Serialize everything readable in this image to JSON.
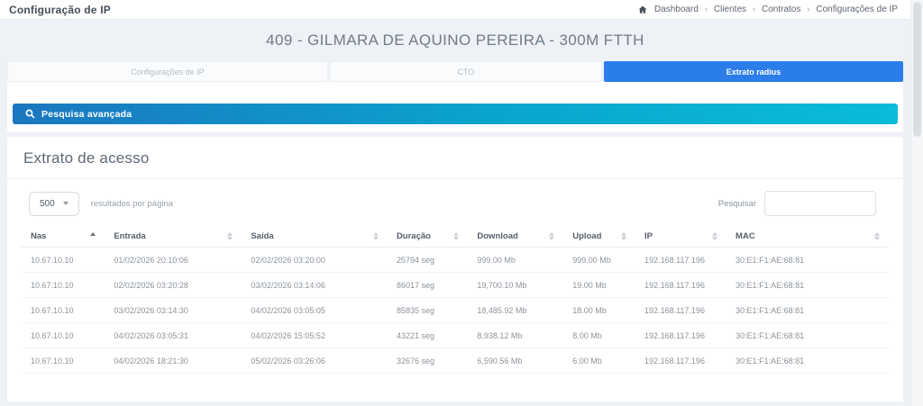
{
  "topbar": {
    "title": "Configuração de IP",
    "breadcrumb": [
      "Dashboard",
      "Clientes",
      "Contratos",
      "Configurações de IP"
    ]
  },
  "header": {
    "title": "409 - GILMARA DE AQUINO PEREIRA - 300M FTTH"
  },
  "tabs": [
    {
      "label": "Configurações de IP",
      "active": false
    },
    {
      "label": "CTO",
      "active": false
    },
    {
      "label": "Extrato radius",
      "active": true
    }
  ],
  "advanced_search": {
    "label": "Pesquisa avançada",
    "icon": "search-icon"
  },
  "section": {
    "title": "Extrato de acesso",
    "page_size": "500",
    "page_size_suffix": "resultados por página",
    "search_label": "Pesquisar",
    "search_value": ""
  },
  "table": {
    "columns": [
      "Nas",
      "Entrada",
      "Saída",
      "Duração",
      "Download",
      "Upload",
      "IP",
      "MAC"
    ],
    "sort": {
      "column": "Nas",
      "direction": "asc"
    },
    "rows": [
      [
        "10.67.10.10",
        "01/02/2026 20:10:06",
        "02/02/2026 03:20:00",
        "25794 seg",
        "999.00 Mb",
        "999.00 Mb",
        "192.168.117.196",
        "30:E1:F1:AE:68:81"
      ],
      [
        "10.67.10.10",
        "02/02/2026 03:20:28",
        "03/02/2026 03:14:06",
        "86017 seg",
        "19,700.10 Mb",
        "19.00 Mb",
        "192.168.117.196",
        "30:E1:F1:AE:68:81"
      ],
      [
        "10.67.10.10",
        "03/02/2026 03:14:30",
        "04/02/2026 03:05:05",
        "85835 seg",
        "18,485.92 Mb",
        "18.00 Mb",
        "192.168.117.196",
        "30:E1:F1:AE:68:81"
      ],
      [
        "10.67.10.10",
        "04/02/2026 03:05:31",
        "04/02/2026 15:05:52",
        "43221 seg",
        "8,938.12 Mb",
        "8.00 Mb",
        "192.168.117.196",
        "30:E1:F1:AE:68:81"
      ],
      [
        "10.67.10.10",
        "04/02/2026 18:21:30",
        "05/02/2026 03:26:06",
        "32676 seg",
        "6,590.56 Mb",
        "6.00 Mb",
        "192.168.117.196",
        "30:E1:F1:AE:68:81"
      ]
    ]
  },
  "colors": {
    "accent_blue": "#2b7de9",
    "gradient_start": "#1b77c0",
    "gradient_end": "#09bcd8",
    "page_bg": "#eef1f6"
  }
}
